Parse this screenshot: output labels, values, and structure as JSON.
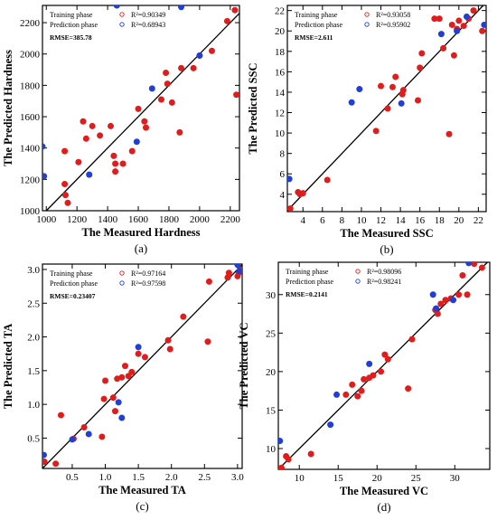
{
  "chart_data": [
    {
      "type": "scatter",
      "panel_label": "(a)",
      "xlabel": "The Measured Hardness",
      "ylabel": "The Predicted Hardness",
      "xlim": [
        975,
        2260
      ],
      "ylim": [
        1000,
        2310
      ],
      "xticks": [
        1000,
        1200,
        1400,
        1600,
        1800,
        2000,
        2200
      ],
      "yticks": [
        1000,
        1200,
        1400,
        1600,
        1800,
        2000,
        2200
      ],
      "grid": false,
      "legend_position": "top-left",
      "legend": [
        {
          "name": "Training phase",
          "stat": "R²=0.90349"
        },
        {
          "name": "Prediction phase",
          "stat": "R²=0.68943"
        }
      ],
      "annotation": "RMSE=385.78",
      "series": [
        {
          "name": "Training phase",
          "color": "#e01c1c",
          "points": [
            [
              1120,
              1380
            ],
            [
              1120,
              1170
            ],
            [
              1125,
              1100
            ],
            [
              1140,
              1050
            ],
            [
              1210,
              1310
            ],
            [
              1240,
              1570
            ],
            [
              1260,
              1460
            ],
            [
              1300,
              1540
            ],
            [
              1350,
              1480
            ],
            [
              1420,
              1540
            ],
            [
              1440,
              1350
            ],
            [
              1450,
              1300
            ],
            [
              1450,
              1250
            ],
            [
              1500,
              1300
            ],
            [
              1560,
              1380
            ],
            [
              1600,
              1650
            ],
            [
              1640,
              1570
            ],
            [
              1650,
              1530
            ],
            [
              1750,
              1710
            ],
            [
              1780,
              1880
            ],
            [
              1790,
              1810
            ],
            [
              1820,
              1690
            ],
            [
              1870,
              1500
            ],
            [
              1880,
              1910
            ],
            [
              1960,
              1910
            ],
            [
              2000,
              1990
            ],
            [
              2080,
              2020
            ],
            [
              2180,
              2210
            ],
            [
              2230,
              2280
            ],
            [
              2240,
              1740
            ]
          ]
        },
        {
          "name": "Prediction phase",
          "color": "#1f3fd6",
          "points": [
            [
              975,
              1410
            ],
            [
              985,
              1220
            ],
            [
              1280,
              1230
            ],
            [
              1460,
              2310
            ],
            [
              1590,
              1440
            ],
            [
              1690,
              1780
            ],
            [
              1880,
              2300
            ],
            [
              2000,
              1990
            ]
          ]
        }
      ]
    },
    {
      "type": "scatter",
      "panel_label": "(b)",
      "xlabel": "The Measured SSC",
      "ylabel": "The Predicted SSC",
      "xlim": [
        2.4,
        22.8
      ],
      "ylim": [
        2.3,
        22.5
      ],
      "xticks": [
        4,
        6,
        8,
        10,
        12,
        14,
        16,
        18,
        20,
        22
      ],
      "yticks": [
        4,
        6,
        8,
        10,
        12,
        14,
        16,
        18,
        20,
        22
      ],
      "grid": false,
      "legend_position": "top-left",
      "legend": [
        {
          "name": "Training phase",
          "stat": "R²=0.93058"
        },
        {
          "name": "Prediction phase",
          "stat": "R²=0.95902"
        }
      ],
      "annotation": "RMSE=2.611",
      "series": [
        {
          "name": "Training phase",
          "color": "#e01c1c",
          "points": [
            [
              2.7,
              2.6
            ],
            [
              3.5,
              4.2
            ],
            [
              3.7,
              4.0
            ],
            [
              4.0,
              4.1
            ],
            [
              6.5,
              5.4
            ],
            [
              11.5,
              10.2
            ],
            [
              12.0,
              14.6
            ],
            [
              12.7,
              12.4
            ],
            [
              13.2,
              14.5
            ],
            [
              13.5,
              15.5
            ],
            [
              14.2,
              13.8
            ],
            [
              14.3,
              14.2
            ],
            [
              15.8,
              13.2
            ],
            [
              16.0,
              16.4
            ],
            [
              16.2,
              17.8
            ],
            [
              17.5,
              21.2
            ],
            [
              18.0,
              21.2
            ],
            [
              18.4,
              18.3
            ],
            [
              19.0,
              9.9
            ],
            [
              19.3,
              20.6
            ],
            [
              19.5,
              17.6
            ],
            [
              19.8,
              20.2
            ],
            [
              20.0,
              21.0
            ],
            [
              20.5,
              20.5
            ],
            [
              21.0,
              21.2
            ],
            [
              21.5,
              22.0
            ],
            [
              22.4,
              20.0
            ]
          ]
        },
        {
          "name": "Prediction phase",
          "color": "#1f3fd6",
          "points": [
            [
              2.6,
              5.5
            ],
            [
              9.0,
              13.0
            ],
            [
              9.8,
              14.3
            ],
            [
              14.1,
              12.9
            ],
            [
              18.2,
              19.7
            ],
            [
              19.8,
              20.0
            ],
            [
              20.8,
              21.4
            ],
            [
              22.6,
              20.6
            ]
          ]
        }
      ]
    },
    {
      "type": "scatter",
      "panel_label": "(c)",
      "xlabel": "The Measured TA",
      "ylabel": "The Predicted TA",
      "xlim": [
        0.05,
        3.07
      ],
      "ylim": [
        0.05,
        3.08
      ],
      "xticks": [
        0.5,
        1.0,
        1.5,
        2.0,
        2.5,
        3.0
      ],
      "yticks": [
        0.5,
        1.0,
        1.5,
        2.0,
        2.5,
        3.0
      ],
      "grid": false,
      "legend_position": "top-left",
      "legend": [
        {
          "name": "Training phase",
          "stat": "R²=0.97164"
        },
        {
          "name": "Prediction phase",
          "stat": "R²=0.97598"
        }
      ],
      "annotation": "RMSE=0.23407",
      "series": [
        {
          "name": "Training phase",
          "color": "#e01c1c",
          "points": [
            [
              0.08,
              0.15
            ],
            [
              0.25,
              0.12
            ],
            [
              0.33,
              0.84
            ],
            [
              0.52,
              0.49
            ],
            [
              0.68,
              0.66
            ],
            [
              0.95,
              0.52
            ],
            [
              0.98,
              1.08
            ],
            [
              1.0,
              1.35
            ],
            [
              1.12,
              1.1
            ],
            [
              1.15,
              0.9
            ],
            [
              1.18,
              1.38
            ],
            [
              1.25,
              1.4
            ],
            [
              1.3,
              1.57
            ],
            [
              1.35,
              1.42
            ],
            [
              1.4,
              1.48
            ],
            [
              1.5,
              1.75
            ],
            [
              1.6,
              1.7
            ],
            [
              1.95,
              1.95
            ],
            [
              1.98,
              1.82
            ],
            [
              2.18,
              2.3
            ],
            [
              2.55,
              1.93
            ],
            [
              2.57,
              2.82
            ],
            [
              2.85,
              2.88
            ],
            [
              2.87,
              2.95
            ],
            [
              3.0,
              2.9
            ],
            [
              3.02,
              2.95
            ],
            [
              3.04,
              3.0
            ]
          ]
        },
        {
          "name": "Prediction phase",
          "color": "#1f3fd6",
          "points": [
            [
              0.07,
              0.25
            ],
            [
              0.5,
              0.48
            ],
            [
              0.75,
              0.56
            ],
            [
              1.2,
              1.03
            ],
            [
              1.25,
              0.8
            ],
            [
              1.5,
              1.85
            ],
            [
              3.0,
              3.07
            ],
            [
              3.03,
              2.98
            ]
          ]
        }
      ]
    },
    {
      "type": "scatter",
      "panel_label": "(d)",
      "xlabel": "The Measured VC",
      "ylabel": "The Predicted VC",
      "xlim": [
        7.3,
        34.5
      ],
      "ylim": [
        7.3,
        34.2
      ],
      "xticks": [
        10,
        15,
        20,
        25,
        30
      ],
      "yticks": [
        10,
        15,
        20,
        25,
        30
      ],
      "grid": false,
      "legend_position": "top-left",
      "legend": [
        {
          "name": "Training phase",
          "stat": "R²=0.98096"
        },
        {
          "name": "Prediction phase",
          "stat": "R²=0.98241"
        }
      ],
      "annotation": "RMSE=0.2141",
      "series": [
        {
          "name": "Training phase",
          "color": "#e01c1c",
          "points": [
            [
              7.7,
              7.5
            ],
            [
              8.3,
              9.0
            ],
            [
              8.6,
              8.6
            ],
            [
              11.5,
              9.3
            ],
            [
              16.0,
              17.0
            ],
            [
              16.8,
              18.3
            ],
            [
              17.5,
              16.8
            ],
            [
              18.0,
              17.5
            ],
            [
              18.3,
              19.0
            ],
            [
              19.0,
              19.2
            ],
            [
              19.5,
              19.5
            ],
            [
              20.5,
              20.0
            ],
            [
              21.0,
              22.2
            ],
            [
              21.4,
              21.6
            ],
            [
              24.0,
              17.8
            ],
            [
              24.5,
              24.2
            ],
            [
              27.5,
              28.0
            ],
            [
              27.8,
              27.5
            ],
            [
              28.2,
              28.8
            ],
            [
              28.8,
              29.3
            ],
            [
              29.5,
              29.5
            ],
            [
              30.5,
              30.0
            ],
            [
              31.0,
              32.5
            ],
            [
              31.6,
              30.0
            ],
            [
              32.5,
              34.0
            ],
            [
              33.5,
              33.5
            ]
          ]
        },
        {
          "name": "Prediction phase",
          "color": "#1f3fd6",
          "points": [
            [
              7.5,
              11.0
            ],
            [
              14.0,
              13.1
            ],
            [
              14.8,
              17.0
            ],
            [
              19.0,
              21.0
            ],
            [
              27.2,
              30.0
            ],
            [
              27.6,
              28.2
            ],
            [
              29.8,
              29.3
            ],
            [
              31.8,
              34.1
            ]
          ]
        }
      ]
    }
  ]
}
